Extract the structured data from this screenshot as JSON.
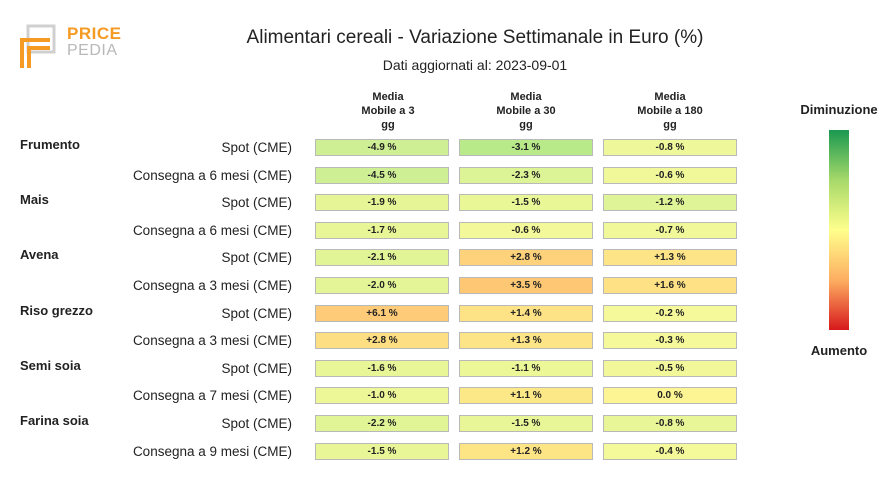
{
  "header": {
    "logo_top": "PRICE",
    "logo_bottom": "PEDIA",
    "title": "Alimentari cereali - Variazione Settimanale in Euro (%)",
    "subtitle": "Dati aggiornati al: 2023-09-01"
  },
  "legend": {
    "top_label": "Diminuzione",
    "bottom_label": "Aumento",
    "colors": [
      "#1a9850",
      "#a6d96a",
      "#ffff8c",
      "#fdae61",
      "#d7191c"
    ]
  },
  "chart_data": {
    "type": "table",
    "columns": [
      [
        "Media",
        "Mobile a 3",
        "gg"
      ],
      [
        "Media",
        "Mobile a 30",
        "gg"
      ],
      [
        "Media",
        "Mobile a 180",
        "gg"
      ]
    ],
    "rows": [
      {
        "product": "Frumento",
        "label": "Spot (CME)",
        "values": [
          "-4.9 %",
          "-3.1 %",
          "-0.8 %"
        ]
      },
      {
        "product": "",
        "label": "Consegna a 6 mesi (CME)",
        "values": [
          "-4.5 %",
          "-2.3 %",
          "-0.6 %"
        ]
      },
      {
        "product": "Mais",
        "label": "Spot (CME)",
        "values": [
          "-1.9 %",
          "-1.5 %",
          "-1.2 %"
        ]
      },
      {
        "product": "",
        "label": "Consegna a 6 mesi (CME)",
        "values": [
          "-1.7 %",
          "-0.6 %",
          "-0.7 %"
        ]
      },
      {
        "product": "Avena",
        "label": "Spot (CME)",
        "values": [
          "-2.1 %",
          "+2.8 %",
          "+1.3 %"
        ]
      },
      {
        "product": "",
        "label": "Consegna a 3 mesi (CME)",
        "values": [
          "-2.0 %",
          "+3.5 %",
          "+1.6 %"
        ]
      },
      {
        "product": "Riso grezzo",
        "label": "Spot (CME)",
        "values": [
          "+6.1 %",
          "+1.4 %",
          "-0.2 %"
        ]
      },
      {
        "product": "",
        "label": "Consegna a 3 mesi (CME)",
        "values": [
          "+2.8 %",
          "+1.3 %",
          "-0.3 %"
        ]
      },
      {
        "product": "Semi soia",
        "label": "Spot (CME)",
        "values": [
          "-1.6 %",
          "-1.1 %",
          "-0.5 %"
        ]
      },
      {
        "product": "",
        "label": "Consegna a 7 mesi (CME)",
        "values": [
          "-1.0 %",
          "+1.1 %",
          "0.0 %"
        ]
      },
      {
        "product": "Farina soia",
        "label": "Spot (CME)",
        "values": [
          "-2.2 %",
          "-1.5 %",
          "-0.8 %"
        ]
      },
      {
        "product": "",
        "label": "Consegna a 9 mesi (CME)",
        "values": [
          "-1.5 %",
          "+1.2 %",
          "-0.4 %"
        ]
      }
    ],
    "cell_colors": [
      [
        "#cfef95",
        "#b8ea8a",
        "#eef79a"
      ],
      [
        "#cfef95",
        "#dcf396",
        "#f0f89a"
      ],
      [
        "#e6f697",
        "#e9f797",
        "#dff496"
      ],
      [
        "#e8f697",
        "#f3f89a",
        "#f1f89a"
      ],
      [
        "#e2f596",
        "#fdd27a",
        "#fde486"
      ],
      [
        "#e3f596",
        "#fdc774",
        "#fde184"
      ],
      [
        "#fecc78",
        "#fde386",
        "#f6f99a"
      ],
      [
        "#fdde83",
        "#fde486",
        "#f5f99a"
      ],
      [
        "#e9f697",
        "#ecf798",
        "#f2f89a"
      ],
      [
        "#eef798",
        "#fde888",
        "#fdf493"
      ],
      [
        "#e1f596",
        "#e9f697",
        "#e8f697"
      ],
      [
        "#e9f697",
        "#fde586",
        "#f4f99a"
      ]
    ]
  }
}
